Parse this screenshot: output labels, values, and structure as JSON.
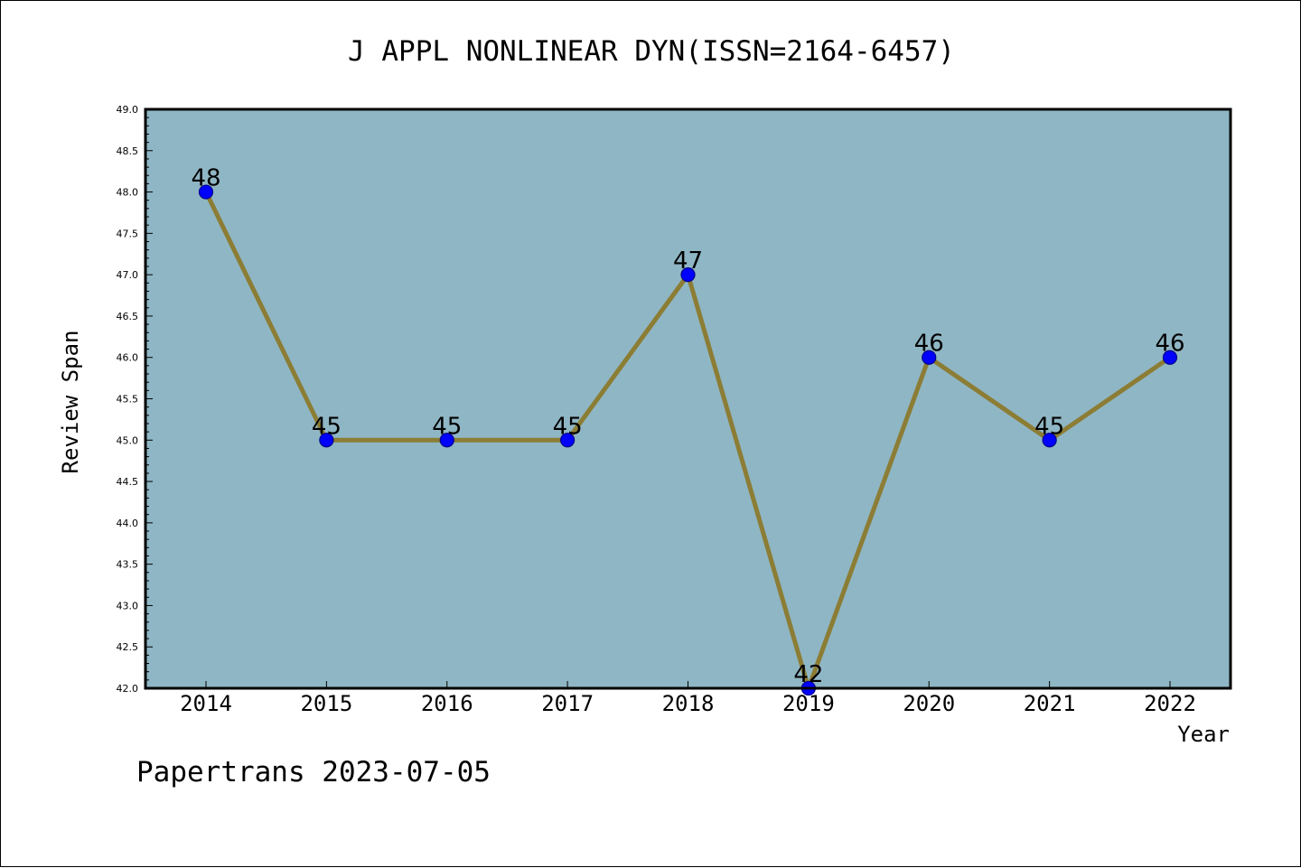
{
  "chart_data": {
    "type": "line",
    "title": "J APPL NONLINEAR DYN(ISSN=2164-6457)",
    "xlabel": "Year",
    "ylabel": "Review Span",
    "categories": [
      "2014",
      "2015",
      "2016",
      "2017",
      "2018",
      "2019",
      "2020",
      "2021",
      "2022"
    ],
    "values": [
      48,
      45,
      45,
      45,
      47,
      42,
      46,
      45,
      46
    ],
    "data_labels": [
      "48",
      "45",
      "45",
      "45",
      "47",
      "42",
      "46",
      "45",
      "46"
    ],
    "ylim": [
      42.0,
      49.0
    ],
    "yticks": [
      "42.0",
      "42.5",
      "43.0",
      "43.5",
      "44.0",
      "44.5",
      "45.0",
      "45.5",
      "46.0",
      "46.5",
      "47.0",
      "47.5",
      "48.0",
      "48.5",
      "49.0"
    ],
    "grid": false,
    "legend": "none",
    "colors": {
      "plot_background": "#8fb6c4",
      "line": "#8c7d35",
      "marker": "#0000ff",
      "marker_edge": "#00008b"
    }
  },
  "footer": {
    "text": "Papertrans 2023-07-05"
  }
}
